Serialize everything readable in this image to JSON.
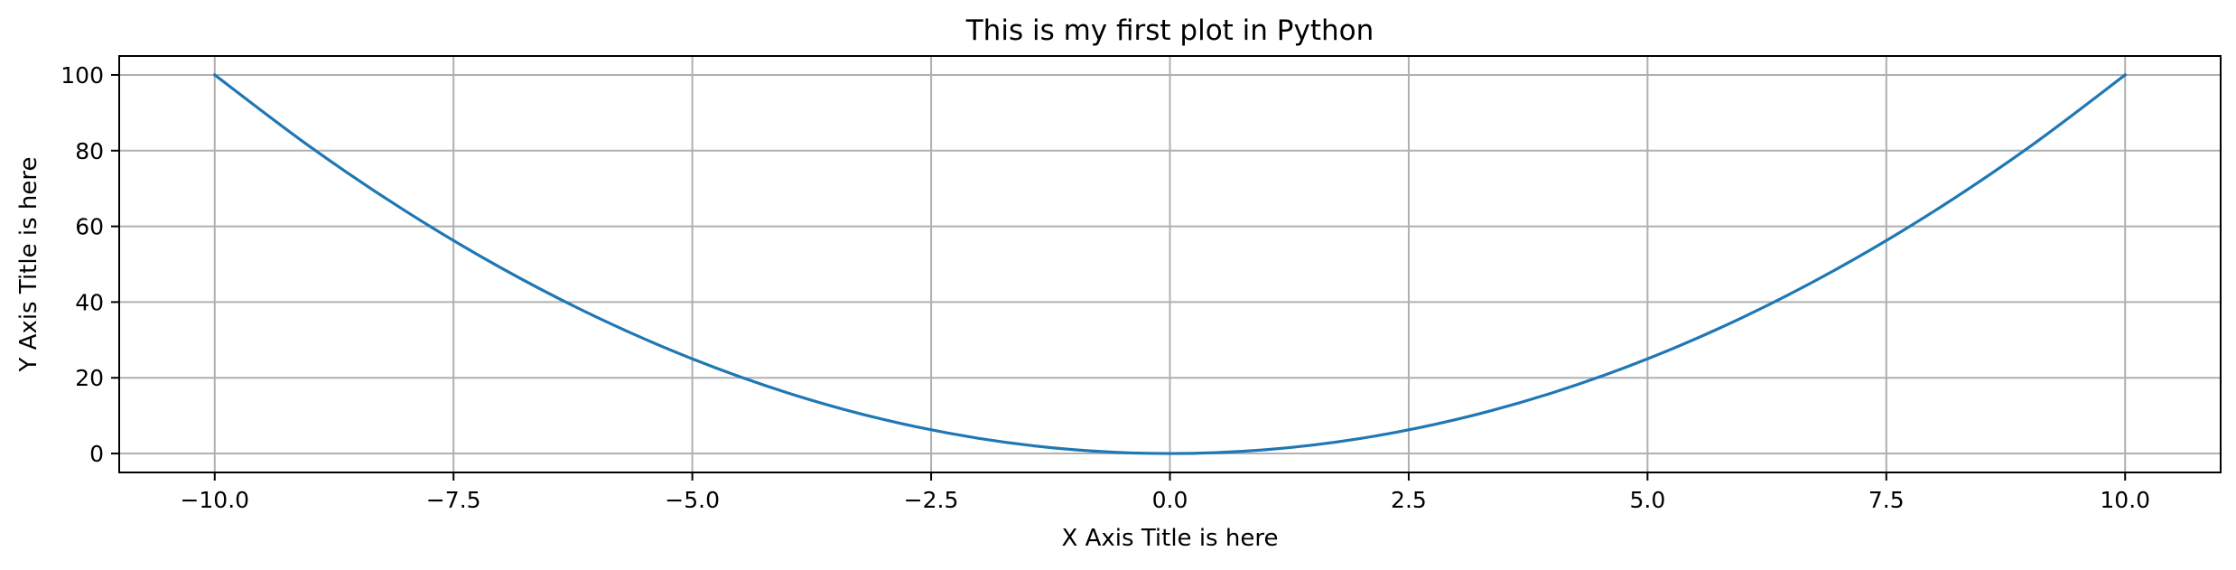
{
  "chart_data": {
    "type": "line",
    "title": "This is my first plot in Python",
    "xlabel": "X Axis Title is here",
    "ylabel": "Y Axis Title is here",
    "xlim": [
      -11,
      11
    ],
    "ylim": [
      -5,
      105
    ],
    "xticks": [
      -10.0,
      -7.5,
      -5.0,
      -2.5,
      0.0,
      2.5,
      5.0,
      7.5,
      10.0
    ],
    "xtick_labels": [
      "−10.0",
      "−7.5",
      "−5.0",
      "−2.5",
      "0.0",
      "2.5",
      "5.0",
      "7.5",
      "10.0"
    ],
    "yticks": [
      0,
      20,
      40,
      60,
      80,
      100
    ],
    "ytick_labels": [
      "0",
      "20",
      "40",
      "60",
      "80",
      "100"
    ],
    "grid": true,
    "series": [
      {
        "color": "#1f77b4",
        "x": [
          -10,
          -9,
          -8,
          -7,
          -6,
          -5,
          -4,
          -3,
          -2,
          -1,
          0,
          1,
          2,
          3,
          4,
          5,
          6,
          7,
          8,
          9,
          10
        ],
        "y": [
          100,
          81,
          64,
          49,
          36,
          25,
          16,
          9,
          4,
          1,
          0,
          1,
          4,
          9,
          16,
          25,
          36,
          49,
          64,
          81,
          100
        ]
      }
    ]
  }
}
